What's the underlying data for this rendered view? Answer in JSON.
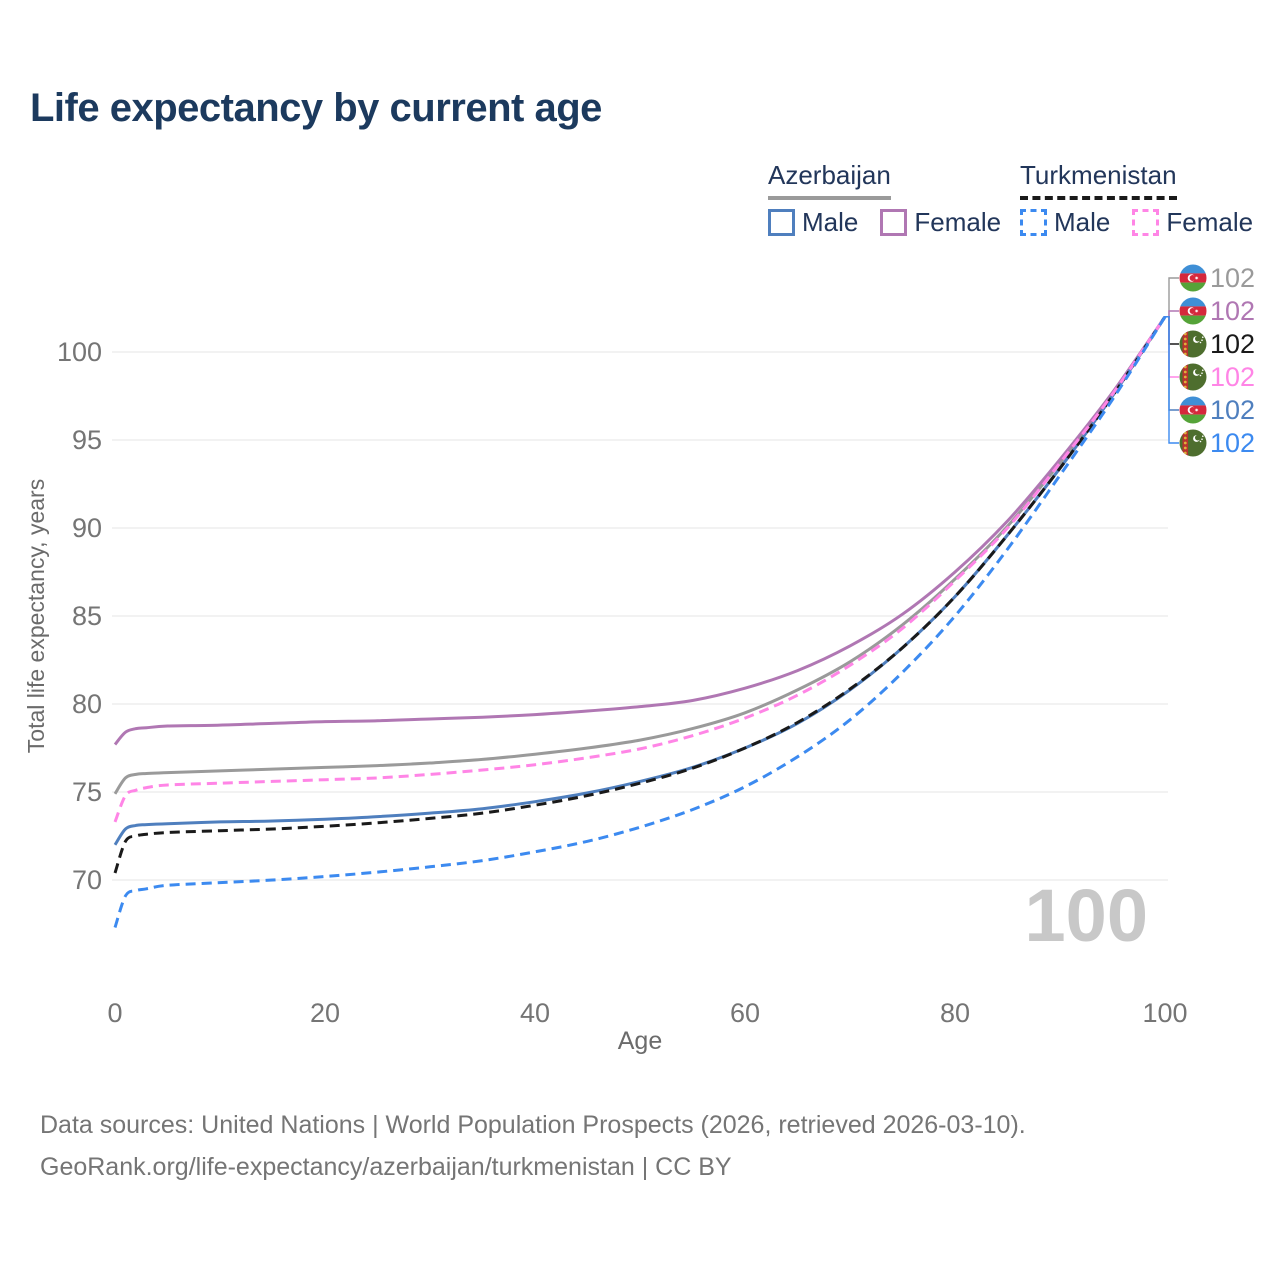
{
  "title": "Life expectancy by current age",
  "watermark": "100",
  "legend": {
    "groups": [
      {
        "country": "Azerbaijan",
        "line_color": "#9a9a9a",
        "line_style": "solid",
        "items": [
          {
            "label": "Male",
            "color": "#4f7fbe",
            "style": "solid"
          },
          {
            "label": "Female",
            "color": "#b077b3",
            "style": "solid"
          }
        ]
      },
      {
        "country": "Turkmenistan",
        "line_color": "#1a1a1a",
        "line_style": "dashed",
        "items": [
          {
            "label": "Male",
            "color": "#3c8af0",
            "style": "dashed"
          },
          {
            "label": "Female",
            "color": "#ff85e6",
            "style": "dashed"
          }
        ]
      }
    ]
  },
  "footer": {
    "line1": "Data sources: United Nations | World Population Prospects (2026, retrieved 2026-03-10).",
    "line2": "GeoRank.org/life-expectancy/azerbaijan/turkmenistan | CC BY"
  },
  "chart_data": {
    "type": "line",
    "title": "Life expectancy by current age",
    "xlabel": "Age",
    "ylabel": "Total life expectancy, years",
    "x_ticks": [
      0,
      20,
      40,
      60,
      80,
      100
    ],
    "y_ticks": [
      70,
      75,
      80,
      85,
      90,
      95,
      100
    ],
    "xlim": [
      0,
      100
    ],
    "ylim": [
      67,
      102.5
    ],
    "grid": "horizontal",
    "legend_position": "top-right",
    "ages": [
      0,
      1,
      2,
      3,
      5,
      10,
      15,
      20,
      25,
      30,
      35,
      40,
      45,
      50,
      55,
      60,
      65,
      70,
      75,
      80,
      85,
      90,
      95,
      100
    ],
    "series": [
      {
        "name": "Azerbaijan",
        "flag": "azerbaijan-flag-icon",
        "color": "#9a9a9a",
        "dash": false,
        "end_label": "102",
        "values": [
          74.9,
          75.8,
          76.0,
          76.05,
          76.1,
          76.2,
          76.3,
          76.4,
          76.5,
          76.65,
          76.85,
          77.15,
          77.5,
          77.95,
          78.6,
          79.5,
          80.8,
          82.4,
          84.5,
          87.1,
          90.1,
          93.7,
          97.6,
          102
        ]
      },
      {
        "name": "Azerbaijan Female",
        "flag": "azerbaijan-flag-icon",
        "color": "#b077b3",
        "dash": false,
        "end_label": "102",
        "values": [
          77.7,
          78.4,
          78.6,
          78.65,
          78.75,
          78.8,
          78.9,
          79.0,
          79.05,
          79.15,
          79.25,
          79.4,
          79.6,
          79.85,
          80.2,
          80.9,
          81.9,
          83.3,
          85.1,
          87.5,
          90.4,
          93.9,
          97.7,
          102
        ]
      },
      {
        "name": "Turkmenistan",
        "flag": "turkmenistan-flag-icon",
        "color": "#1a1a1a",
        "dash": true,
        "end_label": "102",
        "values": [
          70.4,
          72.2,
          72.5,
          72.6,
          72.7,
          72.8,
          72.9,
          73.05,
          73.25,
          73.5,
          73.8,
          74.25,
          74.8,
          75.5,
          76.35,
          77.5,
          78.95,
          80.85,
          83.2,
          86.1,
          89.6,
          93.4,
          97.5,
          102
        ]
      },
      {
        "name": "Turkmenistan Female",
        "flag": "turkmenistan-flag-icon",
        "color": "#ff85e6",
        "dash": true,
        "end_label": "102",
        "values": [
          73.3,
          74.8,
          75.1,
          75.25,
          75.4,
          75.5,
          75.6,
          75.7,
          75.8,
          76.0,
          76.25,
          76.55,
          76.95,
          77.45,
          78.2,
          79.2,
          80.5,
          82.2,
          84.3,
          87.0,
          90.0,
          93.7,
          97.6,
          102
        ]
      },
      {
        "name": "Azerbaijan Male",
        "flag": "azerbaijan-flag-icon",
        "color": "#4f7fbe",
        "dash": false,
        "end_label": "102",
        "values": [
          72.0,
          72.9,
          73.1,
          73.15,
          73.2,
          73.3,
          73.35,
          73.45,
          73.6,
          73.8,
          74.05,
          74.45,
          74.95,
          75.6,
          76.4,
          77.5,
          78.9,
          80.8,
          83.2,
          86.1,
          89.6,
          93.4,
          97.5,
          102
        ]
      },
      {
        "name": "Turkmenistan Male",
        "flag": "turkmenistan-flag-icon",
        "color": "#3c8af0",
        "dash": true,
        "end_label": "102",
        "values": [
          67.3,
          69.1,
          69.4,
          69.5,
          69.7,
          69.85,
          70.0,
          70.2,
          70.45,
          70.75,
          71.1,
          71.6,
          72.2,
          73.0,
          74.0,
          75.3,
          77.0,
          79.1,
          81.8,
          85.0,
          88.8,
          93.0,
          97.3,
          102
        ]
      }
    ]
  }
}
